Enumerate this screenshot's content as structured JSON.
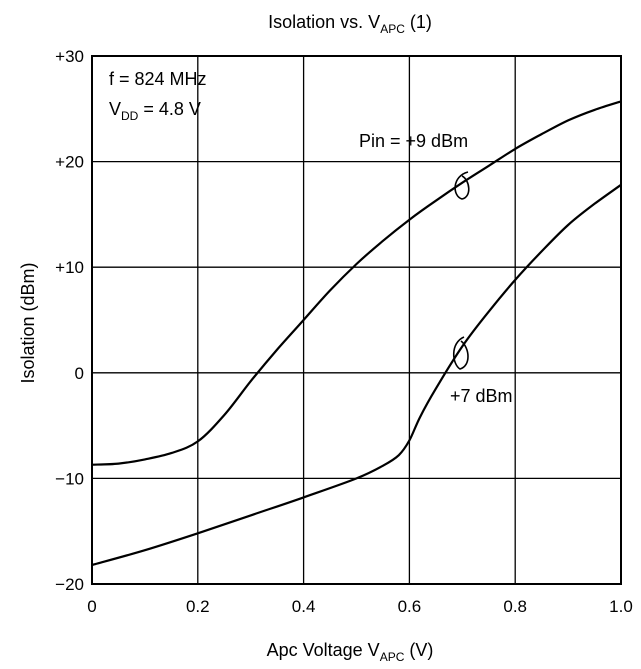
{
  "chart_data": {
    "type": "line",
    "title": {
      "main": "Isolation vs. V",
      "sub": "APC",
      "suffix": " (1)"
    },
    "xlabel": {
      "main": "Apc Voltage  V",
      "sub": "APC",
      "suffix": "  (V)"
    },
    "ylabel": "Isolation  (dBm)",
    "xlim": [
      0,
      1.0
    ],
    "ylim": [
      -20,
      30
    ],
    "grid": true,
    "x_ticks": [
      0,
      0.2,
      0.4,
      0.6,
      0.8,
      1.0
    ],
    "x_tick_labels": [
      "0",
      "0.2",
      "0.4",
      "0.6",
      "0.8",
      "1.0"
    ],
    "y_ticks": [
      -20,
      -10,
      0,
      10,
      20,
      30
    ],
    "y_tick_labels": [
      "−20",
      "−10",
      "0",
      "+10",
      "+20",
      "+30"
    ],
    "conditions": [
      {
        "main": "f = 824 MHz",
        "sub": "",
        "suffix": ""
      },
      {
        "main": "V",
        "sub": "DD",
        "suffix": " = 4.8 V"
      }
    ],
    "series": [
      {
        "name": "Pin = +9 dBm",
        "x": [
          0,
          0.05,
          0.1,
          0.15,
          0.2,
          0.25,
          0.3,
          0.35,
          0.4,
          0.45,
          0.5,
          0.55,
          0.6,
          0.65,
          0.7,
          0.75,
          0.8,
          0.85,
          0.9,
          0.95,
          1.0
        ],
        "y": [
          -8.7,
          -8.6,
          -8.2,
          -7.6,
          -6.5,
          -4.0,
          -0.8,
          2.2,
          5.0,
          7.8,
          10.3,
          12.5,
          14.5,
          16.3,
          18.0,
          19.6,
          21.2,
          22.6,
          23.9,
          24.9,
          25.7
        ]
      },
      {
        "name": "+7 dBm",
        "x": [
          0,
          0.1,
          0.2,
          0.3,
          0.4,
          0.5,
          0.55,
          0.58,
          0.6,
          0.62,
          0.65,
          0.7,
          0.75,
          0.8,
          0.85,
          0.9,
          0.95,
          1.0
        ],
        "y": [
          -18.2,
          -16.8,
          -15.2,
          -13.5,
          -11.8,
          -10.0,
          -8.8,
          -7.8,
          -6.4,
          -4.2,
          -1.5,
          2.5,
          5.8,
          8.8,
          11.5,
          14.0,
          16.0,
          17.8
        ]
      }
    ]
  }
}
